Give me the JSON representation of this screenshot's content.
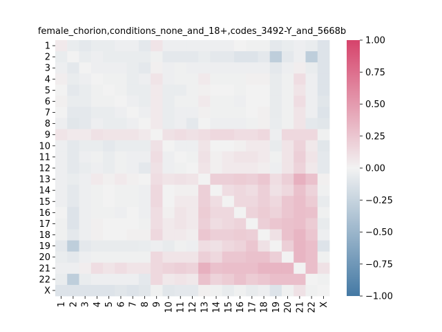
{
  "chart_data": {
    "type": "heatmap",
    "title": "female_chorion,conditions_none_and_18+,codes_3492-Y_and_5668b",
    "xlabel": "",
    "ylabel": "",
    "labels": [
      "1",
      "2",
      "3",
      "4",
      "5",
      "6",
      "7",
      "8",
      "9",
      "10",
      "11",
      "12",
      "13",
      "14",
      "15",
      "16",
      "17",
      "18",
      "19",
      "20",
      "21",
      "22",
      "X"
    ],
    "vmin": -1.0,
    "vmax": 1.0,
    "colorbar_ticks": [
      -1.0,
      -0.75,
      -0.5,
      -0.25,
      0.0,
      0.25,
      0.5,
      0.75,
      1.0
    ],
    "colorbar_tick_labels": [
      "−1.00",
      "−0.75",
      "−0.50",
      "−0.25",
      "0.00",
      "0.25",
      "0.50",
      "0.75",
      "1.00"
    ],
    "colormap": {
      "negative": "#4479a4",
      "center": "#f2f2f2",
      "positive": "#d6436b"
    },
    "matrix": [
      [
        0.05,
        -0.05,
        -0.08,
        -0.05,
        -0.05,
        -0.03,
        -0.03,
        -0.08,
        0.08,
        -0.03,
        -0.03,
        -0.03,
        -0.03,
        -0.03,
        -0.03,
        0.0,
        -0.02,
        -0.02,
        -0.08,
        -0.05,
        -0.03,
        -0.05,
        -0.12
      ],
      [
        -0.05,
        0.0,
        -0.05,
        -0.03,
        -0.05,
        -0.05,
        -0.05,
        -0.05,
        -0.02,
        -0.08,
        -0.08,
        -0.08,
        -0.05,
        -0.08,
        -0.08,
        -0.12,
        -0.12,
        -0.08,
        -0.3,
        -0.08,
        -0.03,
        -0.3,
        -0.12
      ],
      [
        -0.03,
        -0.08,
        0.0,
        -0.03,
        -0.03,
        -0.03,
        -0.05,
        -0.08,
        0.02,
        -0.03,
        -0.02,
        -0.03,
        -0.03,
        -0.03,
        -0.03,
        -0.03,
        -0.03,
        -0.03,
        -0.08,
        -0.03,
        0.03,
        -0.05,
        -0.12
      ],
      [
        0.03,
        -0.05,
        -0.03,
        0.0,
        -0.02,
        -0.02,
        -0.05,
        -0.03,
        0.08,
        -0.03,
        -0.02,
        -0.02,
        0.05,
        -0.02,
        -0.02,
        -0.02,
        0.02,
        0.02,
        -0.06,
        -0.02,
        0.12,
        -0.03,
        -0.12
      ],
      [
        0.0,
        -0.08,
        -0.05,
        -0.02,
        0.0,
        -0.02,
        -0.05,
        -0.05,
        0.05,
        -0.05,
        -0.05,
        -0.02,
        0.02,
        0.0,
        0.0,
        -0.02,
        0.0,
        0.0,
        -0.06,
        -0.02,
        0.08,
        -0.03,
        -0.12
      ],
      [
        0.02,
        -0.05,
        -0.05,
        -0.02,
        -0.02,
        0.0,
        -0.03,
        -0.05,
        0.05,
        -0.05,
        -0.02,
        -0.02,
        0.05,
        -0.02,
        -0.02,
        -0.03,
        0.0,
        0.0,
        -0.06,
        -0.02,
        0.12,
        -0.03,
        -0.1
      ],
      [
        0.0,
        -0.08,
        -0.08,
        -0.05,
        -0.05,
        -0.03,
        0.0,
        -0.03,
        0.05,
        -0.05,
        -0.03,
        -0.03,
        0.02,
        -0.02,
        -0.02,
        -0.02,
        0.0,
        0.02,
        -0.06,
        -0.02,
        0.08,
        -0.03,
        -0.12
      ],
      [
        -0.03,
        -0.1,
        -0.08,
        -0.03,
        -0.05,
        -0.05,
        -0.03,
        0.0,
        0.05,
        -0.05,
        -0.03,
        -0.08,
        0.0,
        -0.03,
        -0.03,
        -0.03,
        -0.02,
        0.02,
        -0.05,
        -0.02,
        0.08,
        -0.08,
        -0.1
      ],
      [
        0.08,
        0.05,
        0.05,
        0.1,
        0.08,
        0.08,
        0.08,
        0.05,
        0.0,
        0.1,
        0.12,
        0.1,
        0.12,
        0.15,
        0.15,
        0.12,
        0.12,
        0.15,
        -0.03,
        0.15,
        0.15,
        0.15,
        -0.02
      ],
      [
        -0.03,
        -0.08,
        -0.05,
        -0.05,
        -0.08,
        -0.05,
        -0.05,
        -0.05,
        0.1,
        0.0,
        -0.03,
        -0.03,
        0.08,
        0.0,
        0.0,
        0.02,
        0.05,
        0.05,
        -0.06,
        0.08,
        0.18,
        0.06,
        -0.1
      ],
      [
        -0.03,
        -0.08,
        -0.03,
        -0.02,
        -0.05,
        -0.02,
        -0.03,
        -0.03,
        0.12,
        -0.03,
        0.0,
        -0.02,
        0.1,
        0.02,
        0.05,
        0.08,
        0.08,
        0.05,
        -0.02,
        0.08,
        0.2,
        0.08,
        -0.08
      ],
      [
        -0.03,
        -0.08,
        -0.05,
        -0.03,
        -0.05,
        -0.02,
        -0.03,
        -0.08,
        0.1,
        -0.03,
        -0.02,
        0.0,
        0.08,
        0.02,
        0.05,
        0.05,
        0.05,
        0.03,
        -0.03,
        0.08,
        0.18,
        0.06,
        -0.08
      ],
      [
        -0.03,
        -0.05,
        -0.03,
        0.05,
        0.02,
        0.05,
        0.02,
        0.0,
        0.12,
        0.08,
        0.1,
        0.08,
        0.0,
        0.2,
        0.2,
        0.22,
        0.2,
        0.25,
        0.12,
        0.2,
        0.38,
        0.28,
        0.02
      ],
      [
        -0.03,
        -0.08,
        -0.03,
        -0.02,
        0.0,
        -0.02,
        -0.02,
        -0.03,
        0.15,
        0.0,
        0.02,
        0.02,
        0.2,
        0.0,
        0.12,
        0.15,
        0.12,
        0.2,
        0.1,
        0.15,
        0.28,
        0.18,
        -0.02
      ],
      [
        -0.03,
        -0.08,
        -0.03,
        -0.02,
        0.0,
        -0.02,
        -0.02,
        -0.03,
        0.15,
        0.0,
        0.05,
        0.05,
        0.2,
        0.12,
        0.0,
        0.15,
        0.15,
        0.2,
        0.15,
        0.25,
        0.3,
        0.22,
        -0.06
      ],
      [
        0.0,
        -0.12,
        -0.03,
        -0.02,
        -0.02,
        -0.03,
        0.0,
        -0.03,
        0.12,
        0.02,
        0.08,
        0.05,
        0.22,
        0.15,
        0.15,
        0.0,
        0.18,
        0.22,
        0.18,
        0.25,
        0.3,
        0.28,
        -0.02
      ],
      [
        -0.02,
        -0.12,
        -0.03,
        0.02,
        0.0,
        0.0,
        0.0,
        -0.02,
        0.12,
        0.05,
        0.08,
        0.05,
        0.2,
        0.12,
        0.15,
        0.18,
        0.0,
        0.2,
        0.25,
        0.28,
        0.3,
        0.22,
        -0.06
      ],
      [
        -0.02,
        -0.08,
        -0.03,
        0.02,
        0.0,
        0.0,
        0.02,
        0.02,
        0.15,
        0.05,
        0.05,
        0.03,
        0.25,
        0.2,
        0.2,
        0.22,
        0.2,
        0.0,
        0.1,
        0.28,
        0.35,
        0.25,
        -0.03
      ],
      [
        -0.08,
        -0.3,
        -0.08,
        -0.06,
        -0.06,
        -0.06,
        -0.06,
        -0.05,
        -0.03,
        -0.06,
        -0.02,
        -0.03,
        0.12,
        0.1,
        0.15,
        0.18,
        0.25,
        0.1,
        0.0,
        0.2,
        0.35,
        0.3,
        -0.12
      ],
      [
        -0.05,
        -0.08,
        -0.03,
        -0.02,
        -0.02,
        -0.02,
        -0.02,
        -0.02,
        0.15,
        0.08,
        0.08,
        0.08,
        0.2,
        0.15,
        0.25,
        0.25,
        0.28,
        0.28,
        0.2,
        0.0,
        0.35,
        0.3,
        -0.02
      ],
      [
        -0.03,
        -0.03,
        0.03,
        0.12,
        0.08,
        0.12,
        0.08,
        0.08,
        0.15,
        0.18,
        0.2,
        0.18,
        0.38,
        0.28,
        0.3,
        0.3,
        0.3,
        0.35,
        0.35,
        0.35,
        0.0,
        0.3,
        0.1
      ],
      [
        -0.05,
        -0.3,
        -0.05,
        -0.03,
        -0.03,
        -0.03,
        -0.03,
        -0.08,
        0.15,
        0.06,
        0.08,
        0.06,
        0.28,
        0.18,
        0.22,
        0.28,
        0.22,
        0.25,
        0.3,
        0.3,
        0.3,
        0.0,
        -0.02
      ],
      [
        -0.12,
        -0.12,
        -0.12,
        -0.12,
        -0.12,
        -0.1,
        -0.12,
        -0.1,
        -0.02,
        -0.1,
        -0.08,
        -0.08,
        0.02,
        -0.02,
        -0.06,
        -0.02,
        -0.06,
        -0.03,
        -0.12,
        -0.02,
        0.1,
        -0.02,
        0.0
      ]
    ]
  }
}
